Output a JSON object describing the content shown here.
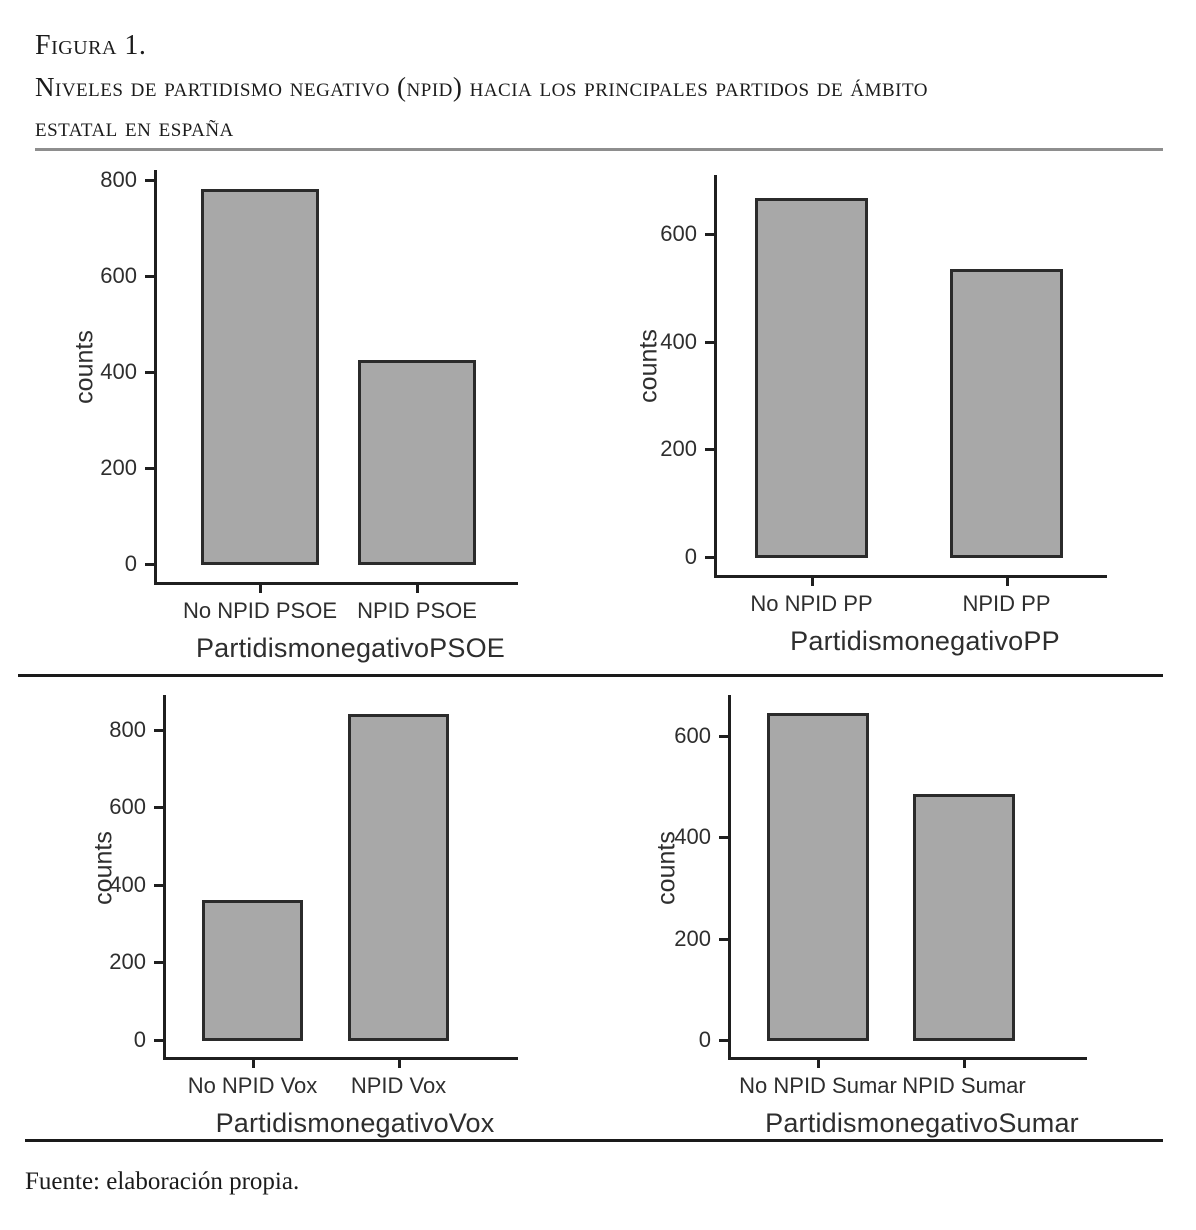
{
  "figure": {
    "label": "Figura 1.",
    "title_line1": "Niveles de partidismo negativo (npid) hacia los principales partidos de ámbito",
    "title_line2": "estatal en españa",
    "source": "Fuente: elaboración propia."
  },
  "colors": {
    "bar_fill": "#a8a8a8",
    "bar_border": "#2b2b2b",
    "axis": "#1f1f1f",
    "divider_top": "#8e8e8e",
    "divider_black": "#1a1a1a",
    "chart_text": "#2e2e2e",
    "title_text": "#1b1b1b"
  },
  "chart_data": [
    {
      "type": "bar",
      "categories": [
        "No NPID PSOE",
        "NPID PSOE"
      ],
      "values": [
        780,
        425
      ],
      "xlabel": "PartidismonegativoPSOE",
      "ylabel": "counts",
      "yticks": [
        0,
        200,
        400,
        600,
        800
      ],
      "ylim": [
        0,
        820
      ],
      "grid": false,
      "legend": "none"
    },
    {
      "type": "bar",
      "categories": [
        "No NPID PP",
        "NPID PP"
      ],
      "values": [
        668,
        535
      ],
      "xlabel": "PartidismonegativoPP",
      "ylabel": "counts",
      "yticks": [
        0,
        200,
        400,
        600
      ],
      "ylim": [
        0,
        710
      ],
      "grid": false,
      "legend": "none"
    },
    {
      "type": "bar",
      "categories": [
        "No NPID Vox",
        "NPID Vox"
      ],
      "values": [
        362,
        840
      ],
      "xlabel": "PartidismonegativoVox",
      "ylabel": "counts",
      "yticks": [
        0,
        200,
        400,
        600,
        800
      ],
      "ylim": [
        0,
        890
      ],
      "grid": false,
      "legend": "none"
    },
    {
      "type": "bar",
      "categories": [
        "No NPID Sumar",
        "NPID Sumar"
      ],
      "values": [
        645,
        485
      ],
      "xlabel": "PartidismonegativoSumar",
      "ylabel": "counts",
      "yticks": [
        0,
        200,
        400,
        600
      ],
      "ylim": [
        0,
        680
      ],
      "grid": false,
      "legend": "none"
    }
  ]
}
